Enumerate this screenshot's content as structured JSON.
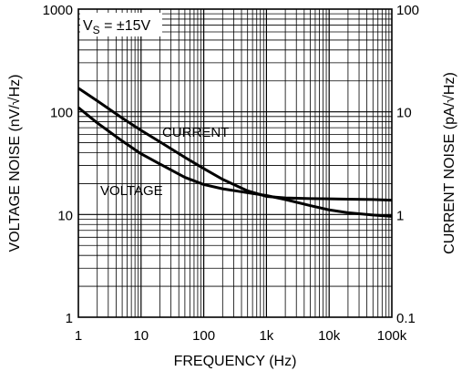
{
  "chart_data": {
    "type": "line",
    "xlabel": "FREQUENCY (Hz)",
    "ylabel": "VOLTAGE NOISE (nV/√Hz)",
    "ylabel_right": "CURRENT NOISE (pA/√Hz)",
    "x_scale": "log",
    "y_scale": "log",
    "xlim": [
      1,
      100000
    ],
    "ylim": [
      1,
      1000
    ],
    "ylim_right": [
      0.1,
      100
    ],
    "x_ticks": [
      {
        "value": 1,
        "label": "1"
      },
      {
        "value": 10,
        "label": "10"
      },
      {
        "value": 100,
        "label": "100"
      },
      {
        "value": 1000,
        "label": "1k"
      },
      {
        "value": 10000,
        "label": "10k"
      },
      {
        "value": 100000,
        "label": "100k"
      }
    ],
    "y_ticks_left": [
      {
        "value": 1,
        "label": "1"
      },
      {
        "value": 10,
        "label": "10"
      },
      {
        "value": 100,
        "label": "100"
      },
      {
        "value": 1000,
        "label": "1000"
      }
    ],
    "y_ticks_right": [
      {
        "value": 0.1,
        "label": "0.1"
      },
      {
        "value": 1,
        "label": "1"
      },
      {
        "value": 10,
        "label": "10"
      },
      {
        "value": 100,
        "label": "100"
      }
    ],
    "grid": true,
    "annotation": {
      "main": "V",
      "sub": "S",
      "rest": " = ±15V"
    },
    "series": [
      {
        "label": "CURRENT",
        "axis": "right",
        "x": [
          1,
          2,
          5,
          10,
          20,
          50,
          100,
          200,
          500,
          1000,
          2000,
          5000,
          10000,
          20000,
          50000,
          100000
        ],
        "y": [
          17,
          12.8,
          8.7,
          6.6,
          5.1,
          3.6,
          2.8,
          2.2,
          1.7,
          1.5,
          1.45,
          1.43,
          1.42,
          1.41,
          1.4,
          1.38
        ]
      },
      {
        "label": "VOLTAGE",
        "axis": "left",
        "x": [
          1,
          2,
          5,
          10,
          20,
          50,
          100,
          200,
          500,
          1000,
          2000,
          5000,
          10000,
          20000,
          50000,
          100000
        ],
        "y": [
          110,
          78,
          52,
          39,
          31,
          23,
          19.6,
          17.8,
          16.3,
          15.3,
          14,
          12.2,
          11.1,
          10.4,
          9.9,
          9.6
        ]
      }
    ]
  }
}
